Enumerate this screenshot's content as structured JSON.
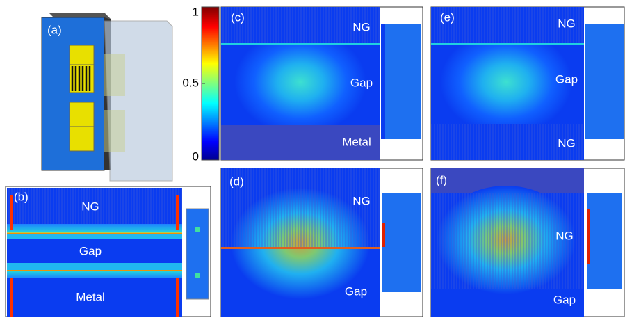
{
  "colorbar": {
    "range": [
      0,
      1
    ],
    "ticks": [
      1,
      0.5,
      0
    ]
  },
  "panels": [
    {
      "label": "(a)"
    },
    {
      "label": "(b)",
      "regions": [
        "NG",
        "Gap",
        "Metal"
      ]
    },
    {
      "label": "(c)",
      "regions": [
        "NG",
        "Gap",
        "Metal"
      ]
    },
    {
      "label": "(d)",
      "regions": [
        "NG",
        "Gap"
      ]
    },
    {
      "label": "(e)",
      "regions": [
        "NG",
        "Gap",
        "NG"
      ]
    },
    {
      "label": "(f)",
      "regions": [
        "NG",
        "Gap"
      ]
    }
  ]
}
